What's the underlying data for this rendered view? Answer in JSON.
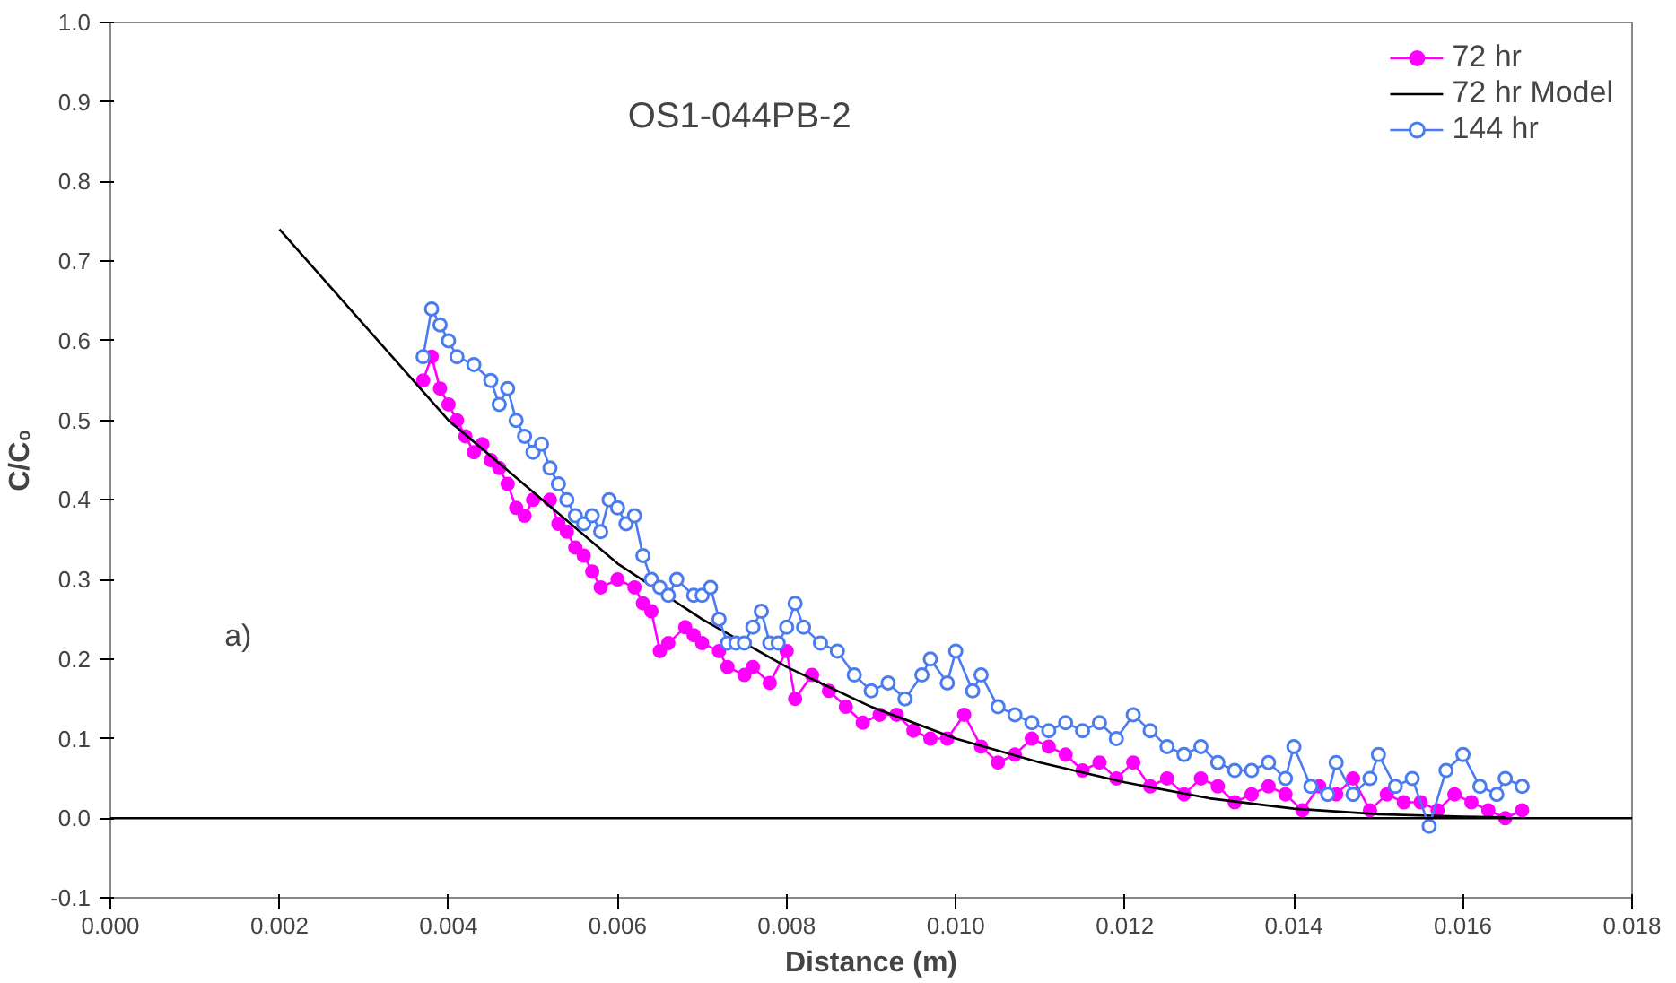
{
  "chart_data": {
    "type": "line",
    "xlabel": "Distance (m)",
    "ylabel": "C/C₀",
    "annotations": [
      "OS1-044PB-2",
      "a)"
    ],
    "xlim": [
      0.0,
      0.018
    ],
    "ylim": [
      -0.1,
      1.0
    ],
    "xticks": [
      {
        "value": 0,
        "label": "0.000"
      },
      {
        "value": 0.002,
        "label": "0.002"
      },
      {
        "value": 0.004,
        "label": "0.004"
      },
      {
        "value": 0.006,
        "label": "0.006"
      },
      {
        "value": 0.008,
        "label": "0.008"
      },
      {
        "value": 0.01,
        "label": "0.010"
      },
      {
        "value": 0.012,
        "label": "0.012"
      },
      {
        "value": 0.014,
        "label": "0.014"
      },
      {
        "value": 0.016,
        "label": "0.016"
      },
      {
        "value": 0.018,
        "label": "0.018"
      }
    ],
    "yticks": [
      {
        "value": -0.1,
        "label": "-0.1"
      },
      {
        "value": 0,
        "label": "0.0"
      },
      {
        "value": 0.1,
        "label": "0.1"
      },
      {
        "value": 0.2,
        "label": "0.2"
      },
      {
        "value": 0.3,
        "label": "0.3"
      },
      {
        "value": 0.4,
        "label": "0.4"
      },
      {
        "value": 0.5,
        "label": "0.5"
      },
      {
        "value": 0.6,
        "label": "0.6"
      },
      {
        "value": 0.7,
        "label": "0.7"
      },
      {
        "value": 0.8,
        "label": "0.8"
      },
      {
        "value": 0.9,
        "label": "0.9"
      },
      {
        "value": 1.0,
        "label": "1.0"
      }
    ],
    "grid": false,
    "legend": "top right",
    "ref_lines": [
      {
        "axis": "y",
        "value": 0,
        "color": "#000000"
      }
    ],
    "series": [
      {
        "name": "72 hr",
        "marker": "circle",
        "color": "#ff00ff",
        "x": [
          0.0037,
          0.0038,
          0.0039,
          0.004,
          0.0041,
          0.0042,
          0.0043,
          0.0044,
          0.0045,
          0.0046,
          0.0047,
          0.0048,
          0.0049,
          0.005,
          0.0052,
          0.0053,
          0.0054,
          0.0055,
          0.0056,
          0.0057,
          0.0058,
          0.006,
          0.0062,
          0.0063,
          0.0064,
          0.0065,
          0.0066,
          0.0068,
          0.0069,
          0.007,
          0.0072,
          0.0073,
          0.0075,
          0.0076,
          0.0078,
          0.008,
          0.0081,
          0.0083,
          0.0085,
          0.0087,
          0.0089,
          0.0091,
          0.0093,
          0.0095,
          0.0097,
          0.0099,
          0.0101,
          0.0103,
          0.0105,
          0.0107,
          0.0109,
          0.0111,
          0.0113,
          0.0115,
          0.0117,
          0.0119,
          0.0121,
          0.0123,
          0.0125,
          0.0127,
          0.0129,
          0.0131,
          0.0133,
          0.0135,
          0.0137,
          0.0139,
          0.0141,
          0.0143,
          0.0145,
          0.0147,
          0.0149,
          0.0151,
          0.0153,
          0.0155,
          0.0157,
          0.0159,
          0.0161,
          0.0163,
          0.0165,
          0.0167
        ],
        "values": [
          0.55,
          0.58,
          0.54,
          0.52,
          0.5,
          0.48,
          0.46,
          0.47,
          0.45,
          0.44,
          0.42,
          0.39,
          0.38,
          0.4,
          0.4,
          0.37,
          0.36,
          0.34,
          0.33,
          0.31,
          0.29,
          0.3,
          0.29,
          0.27,
          0.26,
          0.21,
          0.22,
          0.24,
          0.23,
          0.22,
          0.21,
          0.19,
          0.18,
          0.19,
          0.17,
          0.21,
          0.15,
          0.18,
          0.16,
          0.14,
          0.12,
          0.13,
          0.13,
          0.11,
          0.1,
          0.1,
          0.13,
          0.09,
          0.07,
          0.08,
          0.1,
          0.09,
          0.08,
          0.06,
          0.07,
          0.05,
          0.07,
          0.04,
          0.05,
          0.03,
          0.05,
          0.04,
          0.02,
          0.03,
          0.04,
          0.03,
          0.01,
          0.04,
          0.03,
          0.05,
          0.01,
          0.03,
          0.02,
          0.02,
          0.01,
          0.03,
          0.02,
          0.01,
          0.0,
          0.01
        ]
      },
      {
        "name": "72 hr Model",
        "marker": "none",
        "color": "#000000",
        "x": [
          0.002,
          0.003,
          0.004,
          0.005,
          0.006,
          0.007,
          0.008,
          0.009,
          0.01,
          0.011,
          0.012,
          0.013,
          0.014,
          0.015,
          0.016,
          0.0165
        ],
        "values": [
          0.74,
          0.62,
          0.5,
          0.41,
          0.32,
          0.25,
          0.19,
          0.14,
          0.1,
          0.07,
          0.045,
          0.025,
          0.012,
          0.005,
          0.002,
          0.001
        ]
      },
      {
        "name": "144 hr",
        "marker": "circle_open",
        "color": "#4a7cf0",
        "x": [
          0.0037,
          0.0038,
          0.0039,
          0.004,
          0.0041,
          0.0043,
          0.0045,
          0.0046,
          0.0047,
          0.0048,
          0.0049,
          0.005,
          0.0051,
          0.0052,
          0.0053,
          0.0054,
          0.0055,
          0.0056,
          0.0057,
          0.0058,
          0.0059,
          0.006,
          0.0061,
          0.0062,
          0.0063,
          0.0064,
          0.0065,
          0.0066,
          0.0067,
          0.0069,
          0.007,
          0.0071,
          0.0072,
          0.0073,
          0.0074,
          0.0075,
          0.0076,
          0.0077,
          0.0078,
          0.0079,
          0.008,
          0.0081,
          0.0082,
          0.0084,
          0.0086,
          0.0088,
          0.009,
          0.0092,
          0.0094,
          0.0096,
          0.0097,
          0.0099,
          0.01,
          0.0102,
          0.0103,
          0.0105,
          0.0107,
          0.0109,
          0.0111,
          0.0113,
          0.0115,
          0.0117,
          0.0119,
          0.0121,
          0.0123,
          0.0125,
          0.0127,
          0.0129,
          0.0131,
          0.0133,
          0.0135,
          0.0137,
          0.0139,
          0.014,
          0.0142,
          0.0144,
          0.0145,
          0.0147,
          0.0149,
          0.015,
          0.0152,
          0.0154,
          0.0156,
          0.0158,
          0.016,
          0.0162,
          0.0164,
          0.0165,
          0.0167
        ],
        "values": [
          0.58,
          0.64,
          0.62,
          0.6,
          0.58,
          0.57,
          0.55,
          0.52,
          0.54,
          0.5,
          0.48,
          0.46,
          0.47,
          0.44,
          0.42,
          0.4,
          0.38,
          0.37,
          0.38,
          0.36,
          0.4,
          0.39,
          0.37,
          0.38,
          0.33,
          0.3,
          0.29,
          0.28,
          0.3,
          0.28,
          0.28,
          0.29,
          0.25,
          0.22,
          0.22,
          0.22,
          0.24,
          0.26,
          0.22,
          0.22,
          0.24,
          0.27,
          0.24,
          0.22,
          0.21,
          0.18,
          0.16,
          0.17,
          0.15,
          0.18,
          0.2,
          0.17,
          0.21,
          0.16,
          0.18,
          0.14,
          0.13,
          0.12,
          0.11,
          0.12,
          0.11,
          0.12,
          0.1,
          0.13,
          0.11,
          0.09,
          0.08,
          0.09,
          0.07,
          0.06,
          0.06,
          0.07,
          0.05,
          0.09,
          0.04,
          0.03,
          0.07,
          0.03,
          0.05,
          0.08,
          0.04,
          0.05,
          -0.01,
          0.06,
          0.08,
          0.04,
          0.03,
          0.05,
          0.04
        ]
      }
    ]
  }
}
